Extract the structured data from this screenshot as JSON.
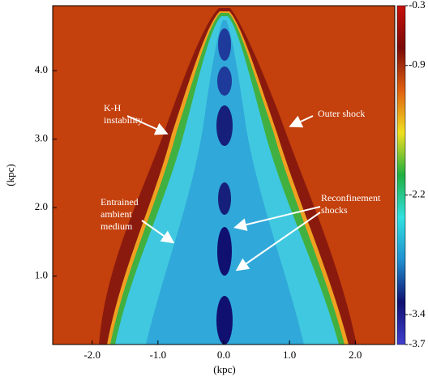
{
  "chart_data": {
    "type": "image",
    "xlabel": "(kpc)",
    "ylabel": "(kpc)",
    "xlim": [
      -2.6,
      2.6
    ],
    "ylim": [
      0,
      4.95
    ],
    "xticks": [
      {
        "value": -2,
        "label": "-2.0"
      },
      {
        "value": -1,
        "label": "-1.0"
      },
      {
        "value": 0,
        "label": "0.0"
      },
      {
        "value": 1,
        "label": "1.0"
      },
      {
        "value": 2,
        "label": "2.0"
      }
    ],
    "yticks": [
      {
        "value": 1,
        "label": "1.0"
      },
      {
        "value": 2,
        "label": "2.0"
      },
      {
        "value": 3,
        "label": "3.0"
      },
      {
        "value": 4,
        "label": "4.0"
      }
    ],
    "clim": [
      -3.7,
      -0.3
    ],
    "cticks": [
      -0.3,
      -0.9,
      -2.2,
      -3.4,
      -3.7
    ],
    "colormap": [
      "#c8100c",
      "#7a0a08",
      "#e06010",
      "#f0e020",
      "#20b040",
      "#30e0e0",
      "#2090d0",
      "#101070",
      "#4040d0"
    ],
    "annotations": [
      {
        "lines": [
          "K-H",
          "instability"
        ]
      },
      {
        "lines": [
          "Outer shock"
        ]
      },
      {
        "lines": [
          "Entrained",
          "ambient",
          "medium"
        ]
      },
      {
        "lines": [
          "Reconfinement",
          "shocks"
        ]
      }
    ]
  }
}
